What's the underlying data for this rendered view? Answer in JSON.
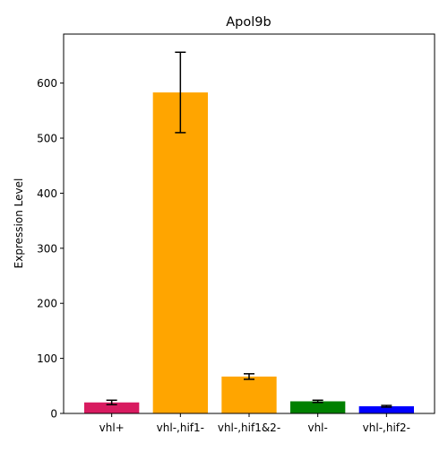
{
  "chart_data": {
    "type": "bar",
    "title": "Apol9b",
    "xlabel": "",
    "ylabel": "Expression Level",
    "categories": [
      "vhl+",
      "vhl-,hif1-",
      "vhl-,hif1&2-",
      "vhl-",
      "vhl-,hif2-"
    ],
    "values": [
      20,
      583,
      67,
      22,
      13
    ],
    "errors": [
      4,
      73,
      5,
      2,
      1.5
    ],
    "colors": [
      "#d81b60",
      "#ffa500",
      "#ffa500",
      "#008000",
      "#0000ff"
    ],
    "ylim": [
      0,
      689
    ],
    "yticks": [
      0,
      100,
      200,
      300,
      400,
      500,
      600
    ],
    "grid": false,
    "legend": "none"
  }
}
